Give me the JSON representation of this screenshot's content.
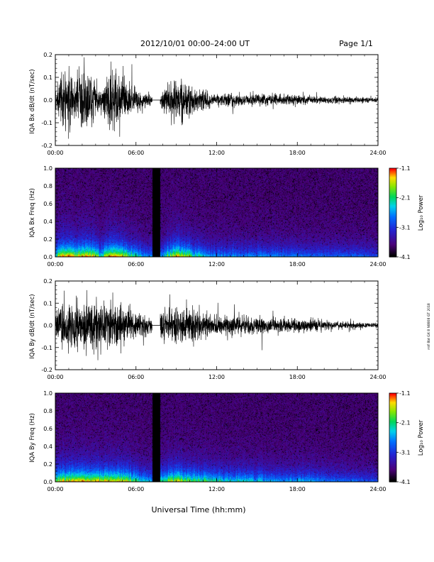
{
  "header": {
    "title": "2012/10/01   00:00–24:00 UT",
    "page": "Page 1/1"
  },
  "footer": {
    "xlabel": "Universal Time (hh:mm)",
    "side_note": "mtf 8bt GX 8 N8808 GT 2018"
  },
  "colorbar": {
    "label": "Log₁₀ Power",
    "ticks": [
      "-1.1",
      "-2.1",
      "-3.1",
      "-4.1"
    ],
    "range": [
      -4.1,
      -1.1
    ]
  },
  "chart_data": [
    {
      "type": "line",
      "id": "bx-wave",
      "ylabel": "IQA Bx dB/dt (nT/sec)",
      "xlim": [
        0,
        24
      ],
      "ylim": [
        -0.2,
        0.2
      ],
      "yticks": [
        "0.2",
        "0.1",
        "0.0",
        "-0.1",
        "-0.2"
      ],
      "xticks": [
        "00:00",
        "06:00",
        "12:00",
        "18:00",
        "24:00"
      ],
      "gap": [
        7.2,
        7.8
      ],
      "envelope": {
        "t": [
          0,
          0.5,
          1,
          1.5,
          2,
          2.5,
          3,
          3.5,
          4,
          4.5,
          5,
          5.5,
          6,
          6.5,
          7.2,
          7.8,
          8.5,
          9,
          9.5,
          10,
          10.5,
          11,
          12,
          13,
          14,
          15,
          16,
          17,
          18,
          19,
          20,
          21,
          22,
          23,
          24
        ],
        "amp": [
          0.06,
          0.22,
          0.25,
          0.15,
          0.22,
          0.24,
          0.13,
          0.08,
          0.22,
          0.2,
          0.18,
          0.14,
          0.09,
          0.06,
          0.05,
          0.06,
          0.13,
          0.2,
          0.16,
          0.12,
          0.09,
          0.07,
          0.045,
          0.05,
          0.045,
          0.04,
          0.045,
          0.035,
          0.04,
          0.03,
          0.025,
          0.03,
          0.025,
          0.02,
          0.015
        ]
      }
    },
    {
      "type": "heatmap",
      "id": "bx-spec",
      "ylabel": "IQA Bx Freq (Hz)",
      "xlim": [
        0,
        24
      ],
      "ylim": [
        0,
        1.0
      ],
      "yticks": [
        "1.0",
        "0.8",
        "0.6",
        "0.4",
        "0.2",
        "0.0"
      ],
      "xticks": [
        "00:00",
        "06:00",
        "12:00",
        "18:00",
        "24:00"
      ],
      "gap": [
        7.2,
        7.8
      ],
      "zlim": [
        -4.1,
        -1.1
      ]
    },
    {
      "type": "line",
      "id": "by-wave",
      "ylabel": "IQA By dB/dt (nT/sec)",
      "xlim": [
        0,
        24
      ],
      "ylim": [
        -0.2,
        0.2
      ],
      "yticks": [
        "0.2",
        "0.1",
        "0.0",
        "-0.1",
        "-0.2"
      ],
      "xticks": [
        "00:00",
        "06:00",
        "12:00",
        "18:00",
        "24:00"
      ],
      "gap": [
        7.2,
        7.8
      ],
      "envelope": {
        "t": [
          0,
          0.5,
          1,
          1.5,
          2,
          2.5,
          3,
          3.5,
          4,
          4.5,
          5,
          5.5,
          6,
          6.5,
          7.2,
          7.8,
          8.5,
          9,
          9.5,
          10,
          10.5,
          11,
          12,
          13,
          14,
          15,
          16,
          17,
          18,
          19,
          20,
          21,
          22,
          23,
          24
        ],
        "amp": [
          0.12,
          0.18,
          0.2,
          0.2,
          0.19,
          0.2,
          0.18,
          0.17,
          0.2,
          0.18,
          0.16,
          0.13,
          0.1,
          0.08,
          0.05,
          0.11,
          0.12,
          0.15,
          0.14,
          0.13,
          0.11,
          0.1,
          0.09,
          0.08,
          0.07,
          0.07,
          0.06,
          0.05,
          0.06,
          0.05,
          0.04,
          0.03,
          0.03,
          0.02,
          0.015
        ]
      }
    },
    {
      "type": "heatmap",
      "id": "by-spec",
      "ylabel": "IQA By Freq (Hz)",
      "xlim": [
        0,
        24
      ],
      "ylim": [
        0,
        1.0
      ],
      "yticks": [
        "1.0",
        "0.8",
        "0.6",
        "0.4",
        "0.2",
        "0.0"
      ],
      "xticks": [
        "00:00",
        "06:00",
        "12:00",
        "18:00",
        "24:00"
      ],
      "gap": [
        7.2,
        7.8
      ],
      "zlim": [
        -4.1,
        -1.1
      ]
    }
  ]
}
